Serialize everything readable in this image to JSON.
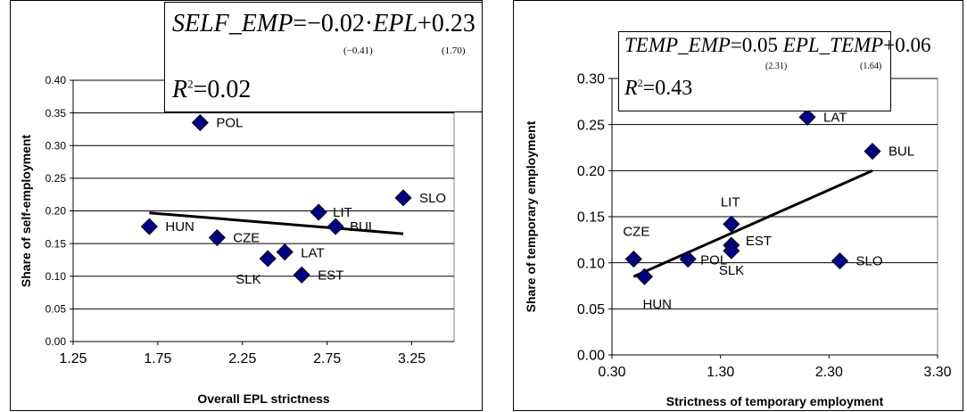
{
  "chart_data": [
    {
      "type": "scatter",
      "xlabel": "Overall EPL strictness",
      "ylabel": "Share of self-employment",
      "xlim": [
        1.25,
        3.5
      ],
      "ylim": [
        0.0,
        0.4
      ],
      "xticks": [
        "1.25",
        "1.75",
        "2.25",
        "2.75",
        "3.25"
      ],
      "yticks": [
        "0.00",
        "0.05",
        "0.10",
        "0.15",
        "0.20",
        "0.25",
        "0.30",
        "0.35",
        "0.40"
      ],
      "grid": "horizontal",
      "points": [
        {
          "label": "POL",
          "x": 2.0,
          "y": 0.335
        },
        {
          "label": "HUN",
          "x": 1.7,
          "y": 0.176
        },
        {
          "label": "CZE",
          "x": 2.1,
          "y": 0.159
        },
        {
          "label": "SLK",
          "x": 2.4,
          "y": 0.127
        },
        {
          "label": "LAT",
          "x": 2.5,
          "y": 0.137
        },
        {
          "label": "EST",
          "x": 2.6,
          "y": 0.102
        },
        {
          "label": "LIT",
          "x": 2.7,
          "y": 0.198
        },
        {
          "label": "BUL",
          "x": 2.8,
          "y": 0.176
        },
        {
          "label": "SLO",
          "x": 3.2,
          "y": 0.22
        }
      ],
      "trendline": {
        "x": [
          1.7,
          3.2
        ],
        "y": [
          0.197,
          0.165
        ]
      },
      "equation": {
        "lhs": "SELF_EMP",
        "eq": "=",
        "coef1": "−0.02",
        "dot": "·",
        "var": "EPL",
        "plus": "+",
        "coef2": "0.23",
        "t1": "(−0.41)",
        "t2": "(1.70)",
        "r2_label": "R",
        "r2_sup": "2",
        "r2_value": "=0.02"
      },
      "marker_color": "#000080"
    },
    {
      "type": "scatter",
      "xlabel": "Strictness of temporary employment",
      "ylabel": "Share of temporary employment",
      "xlim": [
        0.3,
        3.3
      ],
      "ylim": [
        0.0,
        0.3
      ],
      "xticks": [
        "0.30",
        "1.30",
        "2.30",
        "3.30"
      ],
      "yticks": [
        "0.00",
        "0.05",
        "0.10",
        "0.15",
        "0.20",
        "0.25",
        "0.30"
      ],
      "grid": "horizontal",
      "points": [
        {
          "label": "LAT",
          "x": 2.1,
          "y": 0.258
        },
        {
          "label": "BUL",
          "x": 2.7,
          "y": 0.221
        },
        {
          "label": "LIT",
          "x": 1.4,
          "y": 0.142
        },
        {
          "label": "CZE",
          "x": 0.5,
          "y": 0.104
        },
        {
          "label": "EST",
          "x": 1.4,
          "y": 0.119
        },
        {
          "label": "POL",
          "x": 1.0,
          "y": 0.104
        },
        {
          "label": "SLK",
          "x": 1.4,
          "y": 0.113
        },
        {
          "label": "HUN",
          "x": 0.6,
          "y": 0.085
        },
        {
          "label": "SLO",
          "x": 2.4,
          "y": 0.102
        }
      ],
      "trendline": {
        "x": [
          0.5,
          2.7
        ],
        "y": [
          0.085,
          0.2
        ]
      },
      "equation": {
        "lhs": "TEMP_EMP",
        "eq": "=",
        "coef1": "0.05",
        "var": "EPL_TEMP",
        "plus": "+",
        "coef2": "0.06",
        "t1": "(2.31)",
        "t2": "(1.64)",
        "r2_label": "R",
        "r2_sup": "2",
        "r2_value": "=0.43"
      },
      "marker_color": "#000080"
    }
  ]
}
